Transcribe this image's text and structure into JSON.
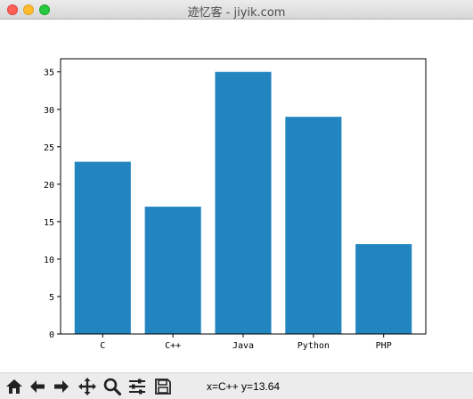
{
  "window": {
    "title": "迹忆客 - jiyik.com"
  },
  "chart_data": {
    "type": "bar",
    "categories": [
      "C",
      "C++",
      "Java",
      "Python",
      "PHP"
    ],
    "values": [
      23,
      17,
      35,
      29,
      12
    ],
    "ylim": [
      0,
      36.75
    ],
    "yticks": [
      0,
      5,
      10,
      15,
      20,
      25,
      30,
      35
    ],
    "bar_color": "#2385c0",
    "title": "",
    "xlabel": "",
    "ylabel": "",
    "grid": false
  },
  "toolbar": {
    "buttons": [
      {
        "name": "home-icon"
      },
      {
        "name": "back-arrow-icon"
      },
      {
        "name": "forward-arrow-icon"
      },
      {
        "name": "pan-move-icon"
      },
      {
        "name": "zoom-magnifier-icon"
      },
      {
        "name": "configure-subplots-icon"
      },
      {
        "name": "save-floppy-icon"
      }
    ],
    "coords": "x=C++ y=13.64"
  }
}
